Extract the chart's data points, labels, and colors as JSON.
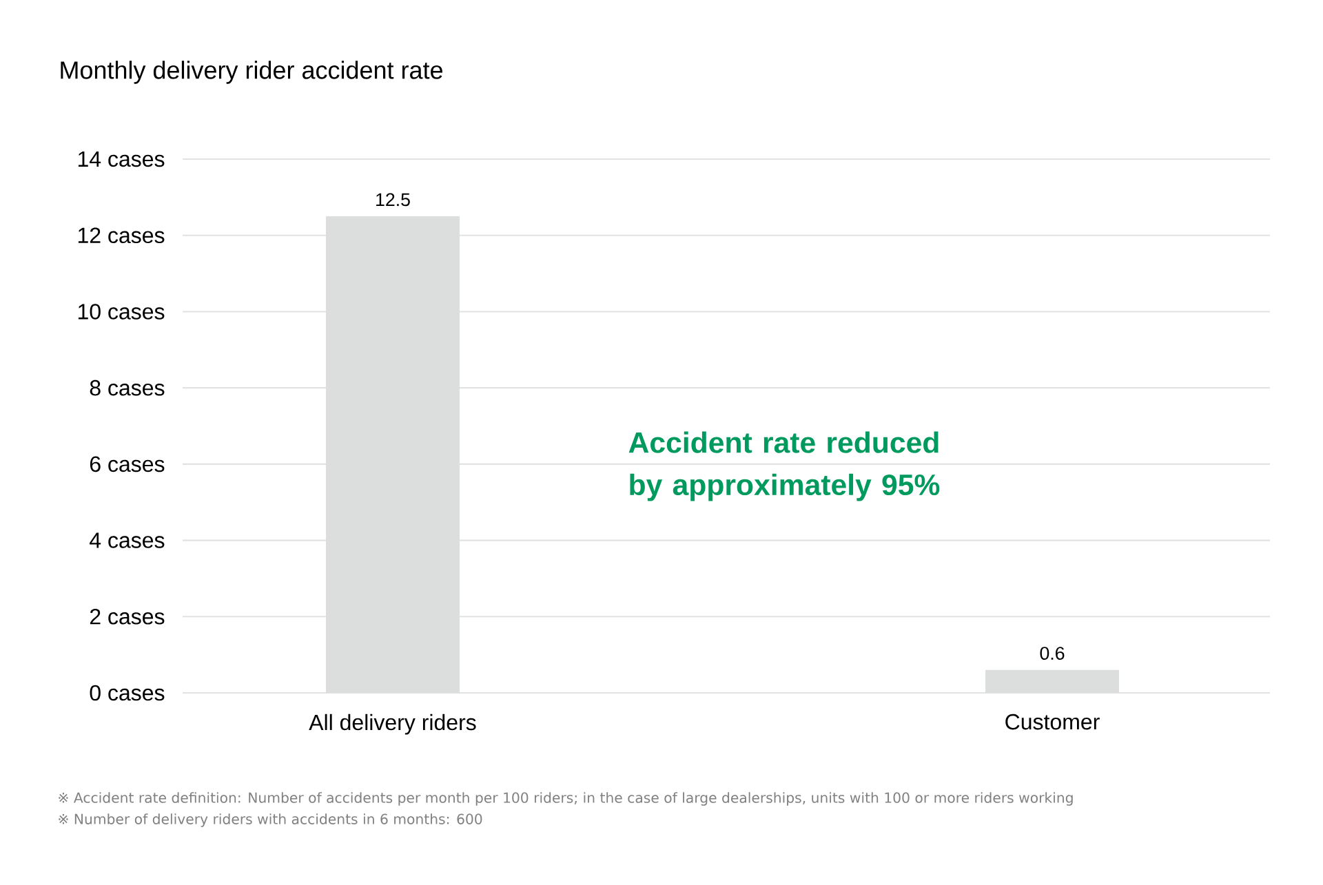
{
  "chart_data": {
    "type": "bar",
    "title": "Monthly delivery rider accident rate",
    "categories": [
      "All delivery riders",
      "Customer"
    ],
    "values": [
      12.5,
      0.6
    ],
    "color": "#dcdedd",
    "data_labels": true,
    "ylim": [
      0,
      14
    ],
    "yticks": [
      {
        "value": 0,
        "label": "0 cases"
      },
      {
        "value": 2,
        "label": "2 cases"
      },
      {
        "value": 4,
        "label": "4 cases"
      },
      {
        "value": 6,
        "label": "6 cases"
      },
      {
        "value": 8,
        "label": "8 cases"
      },
      {
        "value": 10,
        "label": "10 cases"
      },
      {
        "value": 12,
        "label": "12 cases"
      },
      {
        "value": 14,
        "label": "14 cases"
      }
    ],
    "grid": "y",
    "annotations": [
      "Accident rate reduced by approximately 95%",
      "※ Accident rate definition: Number of accidents per month per 100 riders; in the case of large dealerships, units with 100 or more riders working",
      "※ Number of delivery riders with accidents in 6 months: 600"
    ]
  }
}
